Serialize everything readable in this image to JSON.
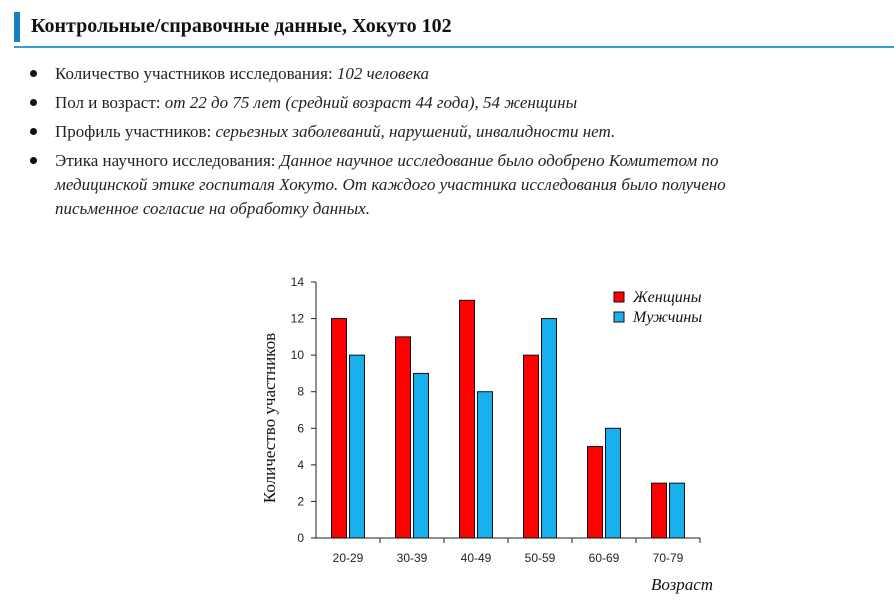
{
  "heading": {
    "title": "Контрольные/справочные данные, Хокуто 102"
  },
  "info": {
    "items": [
      {
        "label": "Количество участников исследования:",
        "value": "102 человека"
      },
      {
        "label": "Пол и возраст:",
        "value": "от 22 до 75 лет (средний возраст 44 года), 54 женщины"
      },
      {
        "label": "Профиль участников:",
        "value": "серьезных заболеваний, нарушений, инвалидности нет."
      },
      {
        "label": "Этика научного исследования:",
        "value": "Данное научное исследование было одобрено Комитетом по",
        "value_line2": "медицинской этике госпиталя Хокуто. От каждого участника исследования было получено",
        "value_line3": "письменное согласие на обработку данных."
      }
    ]
  },
  "colors": {
    "accent": "#1a7ec4",
    "women": "#ff0000",
    "men": "#1ab0ee"
  },
  "chart_data": {
    "type": "bar",
    "categories": [
      "20-29",
      "30-39",
      "40-49",
      "50-59",
      "60-69",
      "70-79"
    ],
    "series": [
      {
        "name": "Женщины",
        "values": [
          12,
          11,
          13,
          10,
          5,
          3
        ]
      },
      {
        "name": "Мужчины",
        "values": [
          10,
          9,
          8,
          12,
          6,
          3
        ]
      }
    ],
    "yticks": [
      "0",
      "2",
      "4",
      "6",
      "8",
      "10",
      "12",
      "14"
    ],
    "ylim": [
      0,
      14
    ],
    "ylabel": "Количество участников",
    "xlabel": "Возраст",
    "legend_position": "top-right",
    "grid": false
  }
}
